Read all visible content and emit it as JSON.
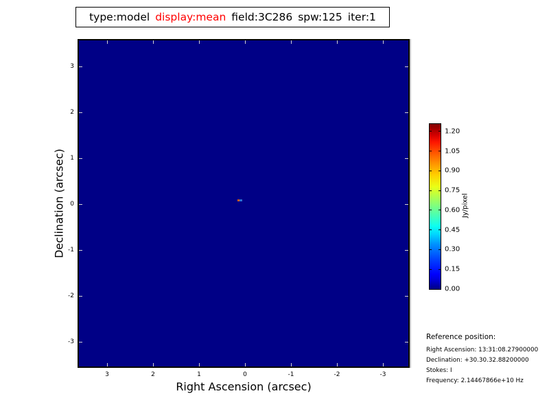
{
  "title_box": {
    "segments": [
      {
        "text": "type:model",
        "color": "#000000"
      },
      {
        "text": "display:mean",
        "color": "#ff0000"
      },
      {
        "text": "field:3C286",
        "color": "#000000"
      },
      {
        "text": "spw:125",
        "color": "#000000"
      },
      {
        "text": "iter:1",
        "color": "#000000"
      }
    ]
  },
  "axes": {
    "xlabel": "Right Ascension (arcsec)",
    "ylabel": "Declination (arcsec)",
    "x_tick_labels": [
      "3",
      "2",
      "1",
      "0",
      "-1",
      "-2",
      "-3"
    ],
    "y_tick_labels": [
      "3",
      "2",
      "1",
      "0",
      "-1",
      "-2",
      "-3"
    ]
  },
  "colorbar": {
    "label": "Jy/pixel",
    "tick_labels": [
      "0.00",
      "0.15",
      "0.30",
      "0.45",
      "0.60",
      "0.75",
      "0.90",
      "1.05",
      "1.20"
    ]
  },
  "reference": {
    "heading": "Reference position:",
    "lines": [
      "Right Ascension: 13:31:08.27900000",
      "Declination: +30.30.32.88200000",
      "Stokes: I",
      "Frequency: 2.14467866e+10 Hz"
    ]
  },
  "chart_data": {
    "type": "heatmap",
    "title": "type:model display:mean field:3C286 spw:125 iter:1",
    "xlabel": "Right Ascension (arcsec)",
    "ylabel": "Declination (arcsec)",
    "x_ticks": [
      3,
      2,
      1,
      0,
      -1,
      -2,
      -3
    ],
    "y_ticks": [
      3,
      2,
      1,
      0,
      -1,
      -2,
      -3
    ],
    "xlim": [
      3.65,
      -3.6
    ],
    "ylim": [
      -3.6,
      3.65
    ],
    "x_axis_reversed": true,
    "grid": false,
    "colormap": "jet",
    "vmin": 0.0,
    "vmax": 1.26,
    "background_value": 0.0,
    "background_color": "#000086",
    "tick_color": "#d4d4d4",
    "colorbar_label": "Jy/pixel",
    "colorbar_ticks": [
      0.0,
      0.15,
      0.3,
      0.45,
      0.6,
      0.75,
      0.9,
      1.05,
      1.2
    ],
    "source": {
      "description": "unresolved point source near field center (3C286 model)",
      "pixels": [
        {
          "ra_arcsec": 0.14,
          "dec_arcsec": 0.08,
          "color": "#d4560f",
          "approx_value_jy": 1.0
        },
        {
          "ra_arcsec": 0.09,
          "dec_arcsec": 0.08,
          "color": "#2d70d0",
          "approx_value_jy": 0.3
        }
      ]
    }
  }
}
